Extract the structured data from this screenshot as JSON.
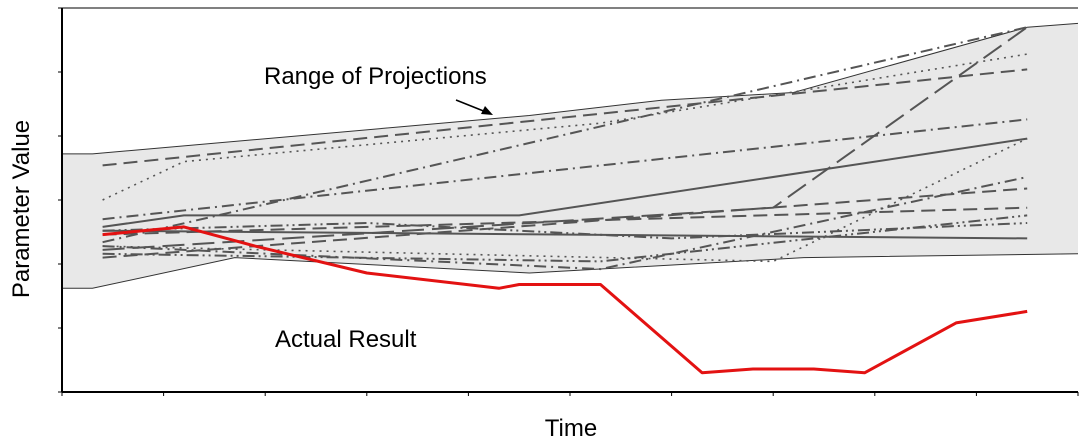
{
  "chart_data": {
    "type": "line",
    "title": "",
    "xlabel": "Time",
    "ylabel": "Parameter Value",
    "annotations": {
      "range_label": "Range of Projections",
      "actual_label": "Actual Result"
    },
    "xlim": [
      0,
      100
    ],
    "ylim": [
      0,
      100
    ],
    "grid": false,
    "legend": "none",
    "colors": {
      "actual": "#e31212",
      "band_fill": "#e8e8e8",
      "band_edge": "#333333",
      "projection": "#555555",
      "axis": "#000000"
    },
    "envelope": {
      "upper": [
        [
          0,
          62
        ],
        [
          3,
          62
        ],
        [
          46,
          72
        ],
        [
          59,
          76
        ],
        [
          72,
          78
        ],
        [
          95,
          95
        ],
        [
          100,
          96
        ]
      ],
      "lower": [
        [
          0,
          27
        ],
        [
          3,
          27
        ],
        [
          17,
          35
        ],
        [
          46,
          31
        ],
        [
          73,
          35
        ],
        [
          100,
          36
        ]
      ]
    },
    "actual_result": [
      [
        4,
        41
      ],
      [
        12,
        43
      ],
      [
        19,
        38
      ],
      [
        30,
        31
      ],
      [
        43,
        27
      ],
      [
        45,
        28
      ],
      [
        53,
        28
      ],
      [
        63,
        5
      ],
      [
        68,
        6
      ],
      [
        74,
        6
      ],
      [
        79,
        5
      ],
      [
        88,
        18
      ],
      [
        95,
        21
      ]
    ],
    "projections": [
      {
        "style": "dash",
        "points": [
          [
            4,
            59
          ],
          [
            95,
            84
          ]
        ]
      },
      {
        "style": "dash",
        "points": [
          [
            4,
            41
          ],
          [
            95,
            48
          ]
        ]
      },
      {
        "style": "dash",
        "points": [
          [
            4,
            35
          ],
          [
            95,
            53
          ]
        ]
      },
      {
        "style": "solid",
        "points": [
          [
            4,
            43
          ],
          [
            12,
            46
          ],
          [
            45,
            46
          ],
          [
            95,
            66
          ]
        ]
      },
      {
        "style": "solid",
        "points": [
          [
            4,
            42
          ],
          [
            95,
            40
          ]
        ]
      },
      {
        "style": "dashdot",
        "points": [
          [
            4,
            39
          ],
          [
            95,
            95
          ]
        ]
      },
      {
        "style": "dashdot",
        "points": [
          [
            4,
            45
          ],
          [
            95,
            71
          ]
        ]
      },
      {
        "style": "dashdot",
        "points": [
          [
            4,
            38
          ],
          [
            53,
            32
          ],
          [
            95,
            56
          ]
        ]
      },
      {
        "style": "longdash",
        "points": [
          [
            4,
            37
          ],
          [
            70,
            48
          ],
          [
            95,
            95
          ]
        ]
      },
      {
        "style": "dot",
        "points": [
          [
            4,
            50
          ],
          [
            12,
            60
          ],
          [
            53,
            70
          ],
          [
            95,
            88
          ]
        ]
      },
      {
        "style": "dot",
        "points": [
          [
            4,
            38
          ],
          [
            70,
            34
          ],
          [
            95,
            66
          ]
        ]
      },
      {
        "style": "dashdotdot",
        "points": [
          [
            4,
            36
          ],
          [
            53,
            34
          ],
          [
            95,
            46
          ]
        ]
      },
      {
        "style": "dashdotdot",
        "points": [
          [
            4,
            42
          ],
          [
            30,
            44
          ],
          [
            60,
            40
          ],
          [
            95,
            44
          ]
        ]
      }
    ]
  }
}
